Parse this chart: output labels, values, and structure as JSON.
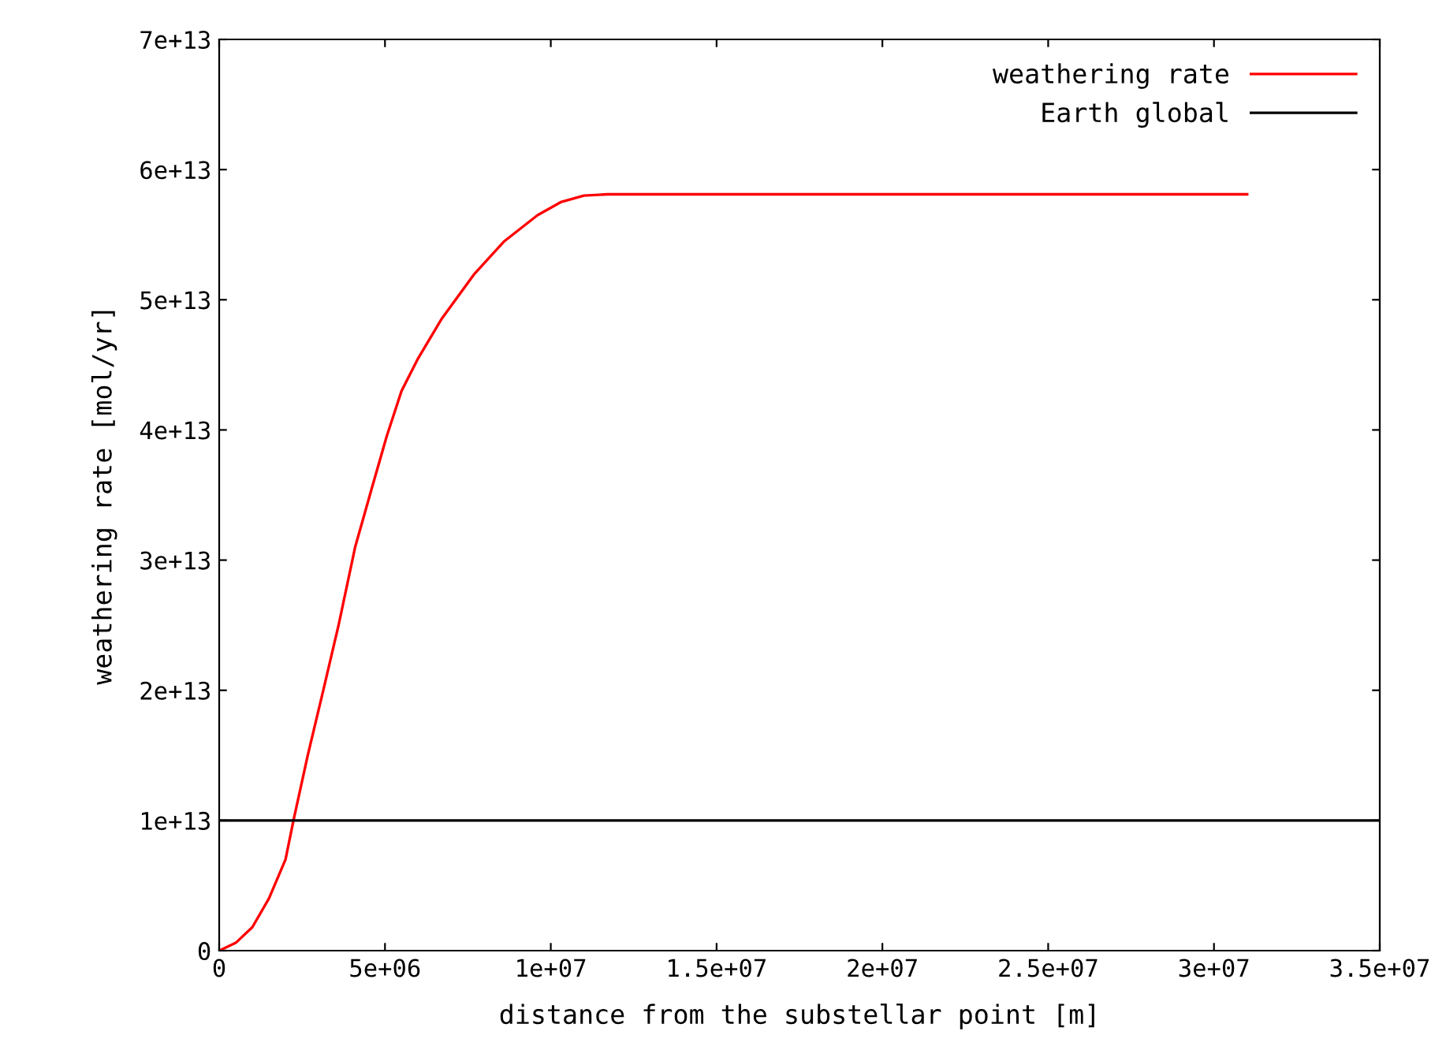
{
  "chart_data": {
    "type": "line",
    "xlabel": "distance from the substellar point [m]",
    "ylabel": "weathering rate [mol/yr]",
    "xlim": [
      0,
      35000000
    ],
    "ylim": [
      0,
      70000000000000
    ],
    "xticks": [
      0,
      {
        "value": 5000000,
        "label": "5e+06"
      },
      {
        "value": 10000000,
        "label": "1e+07"
      },
      {
        "value": 15000000,
        "label": "1.5e+07"
      },
      {
        "value": 20000000,
        "label": "2e+07"
      },
      {
        "value": 25000000,
        "label": "2.5e+07"
      },
      {
        "value": 30000000,
        "label": "3e+07"
      },
      {
        "value": 35000000,
        "label": "3.5e+07"
      }
    ],
    "yticks": [
      0,
      {
        "value": 10000000000000,
        "label": "1e+13"
      },
      {
        "value": 20000000000000,
        "label": "2e+13"
      },
      {
        "value": 30000000000000,
        "label": "3e+13"
      },
      {
        "value": 40000000000000,
        "label": "4e+13"
      },
      {
        "value": 50000000000000,
        "label": "5e+13"
      },
      {
        "value": 60000000000000,
        "label": "6e+13"
      },
      {
        "value": 70000000000000,
        "label": "7e+13"
      }
    ],
    "grid": false,
    "legend": "top right",
    "series": [
      {
        "name": "weathering rate",
        "color": "#ff0000",
        "x": [
          0,
          500000,
          1000000,
          1500000,
          2000000,
          2240000,
          2670000,
          3140000,
          3600000,
          4100000,
          4600000,
          5050000,
          5500000,
          6000000,
          6700000,
          7700000,
          8600000,
          9600000,
          10300000,
          11000000,
          11700000,
          31000000
        ],
        "values": [
          0,
          600000000000,
          1800000000000,
          4000000000000,
          7000000000000,
          10000000000000,
          15000000000000,
          20000000000000,
          25000000000000,
          31000000000000,
          35500000000000,
          39500000000000,
          43000000000000,
          45500000000000,
          48500000000000,
          52000000000000,
          54500000000000,
          56500000000000,
          57500000000000,
          58000000000000,
          58100000000000,
          58100000000000
        ]
      },
      {
        "name": "Earth global",
        "color": "#000000",
        "x": [
          0,
          35000000
        ],
        "values": [
          10000000000000,
          10000000000000
        ]
      }
    ]
  }
}
